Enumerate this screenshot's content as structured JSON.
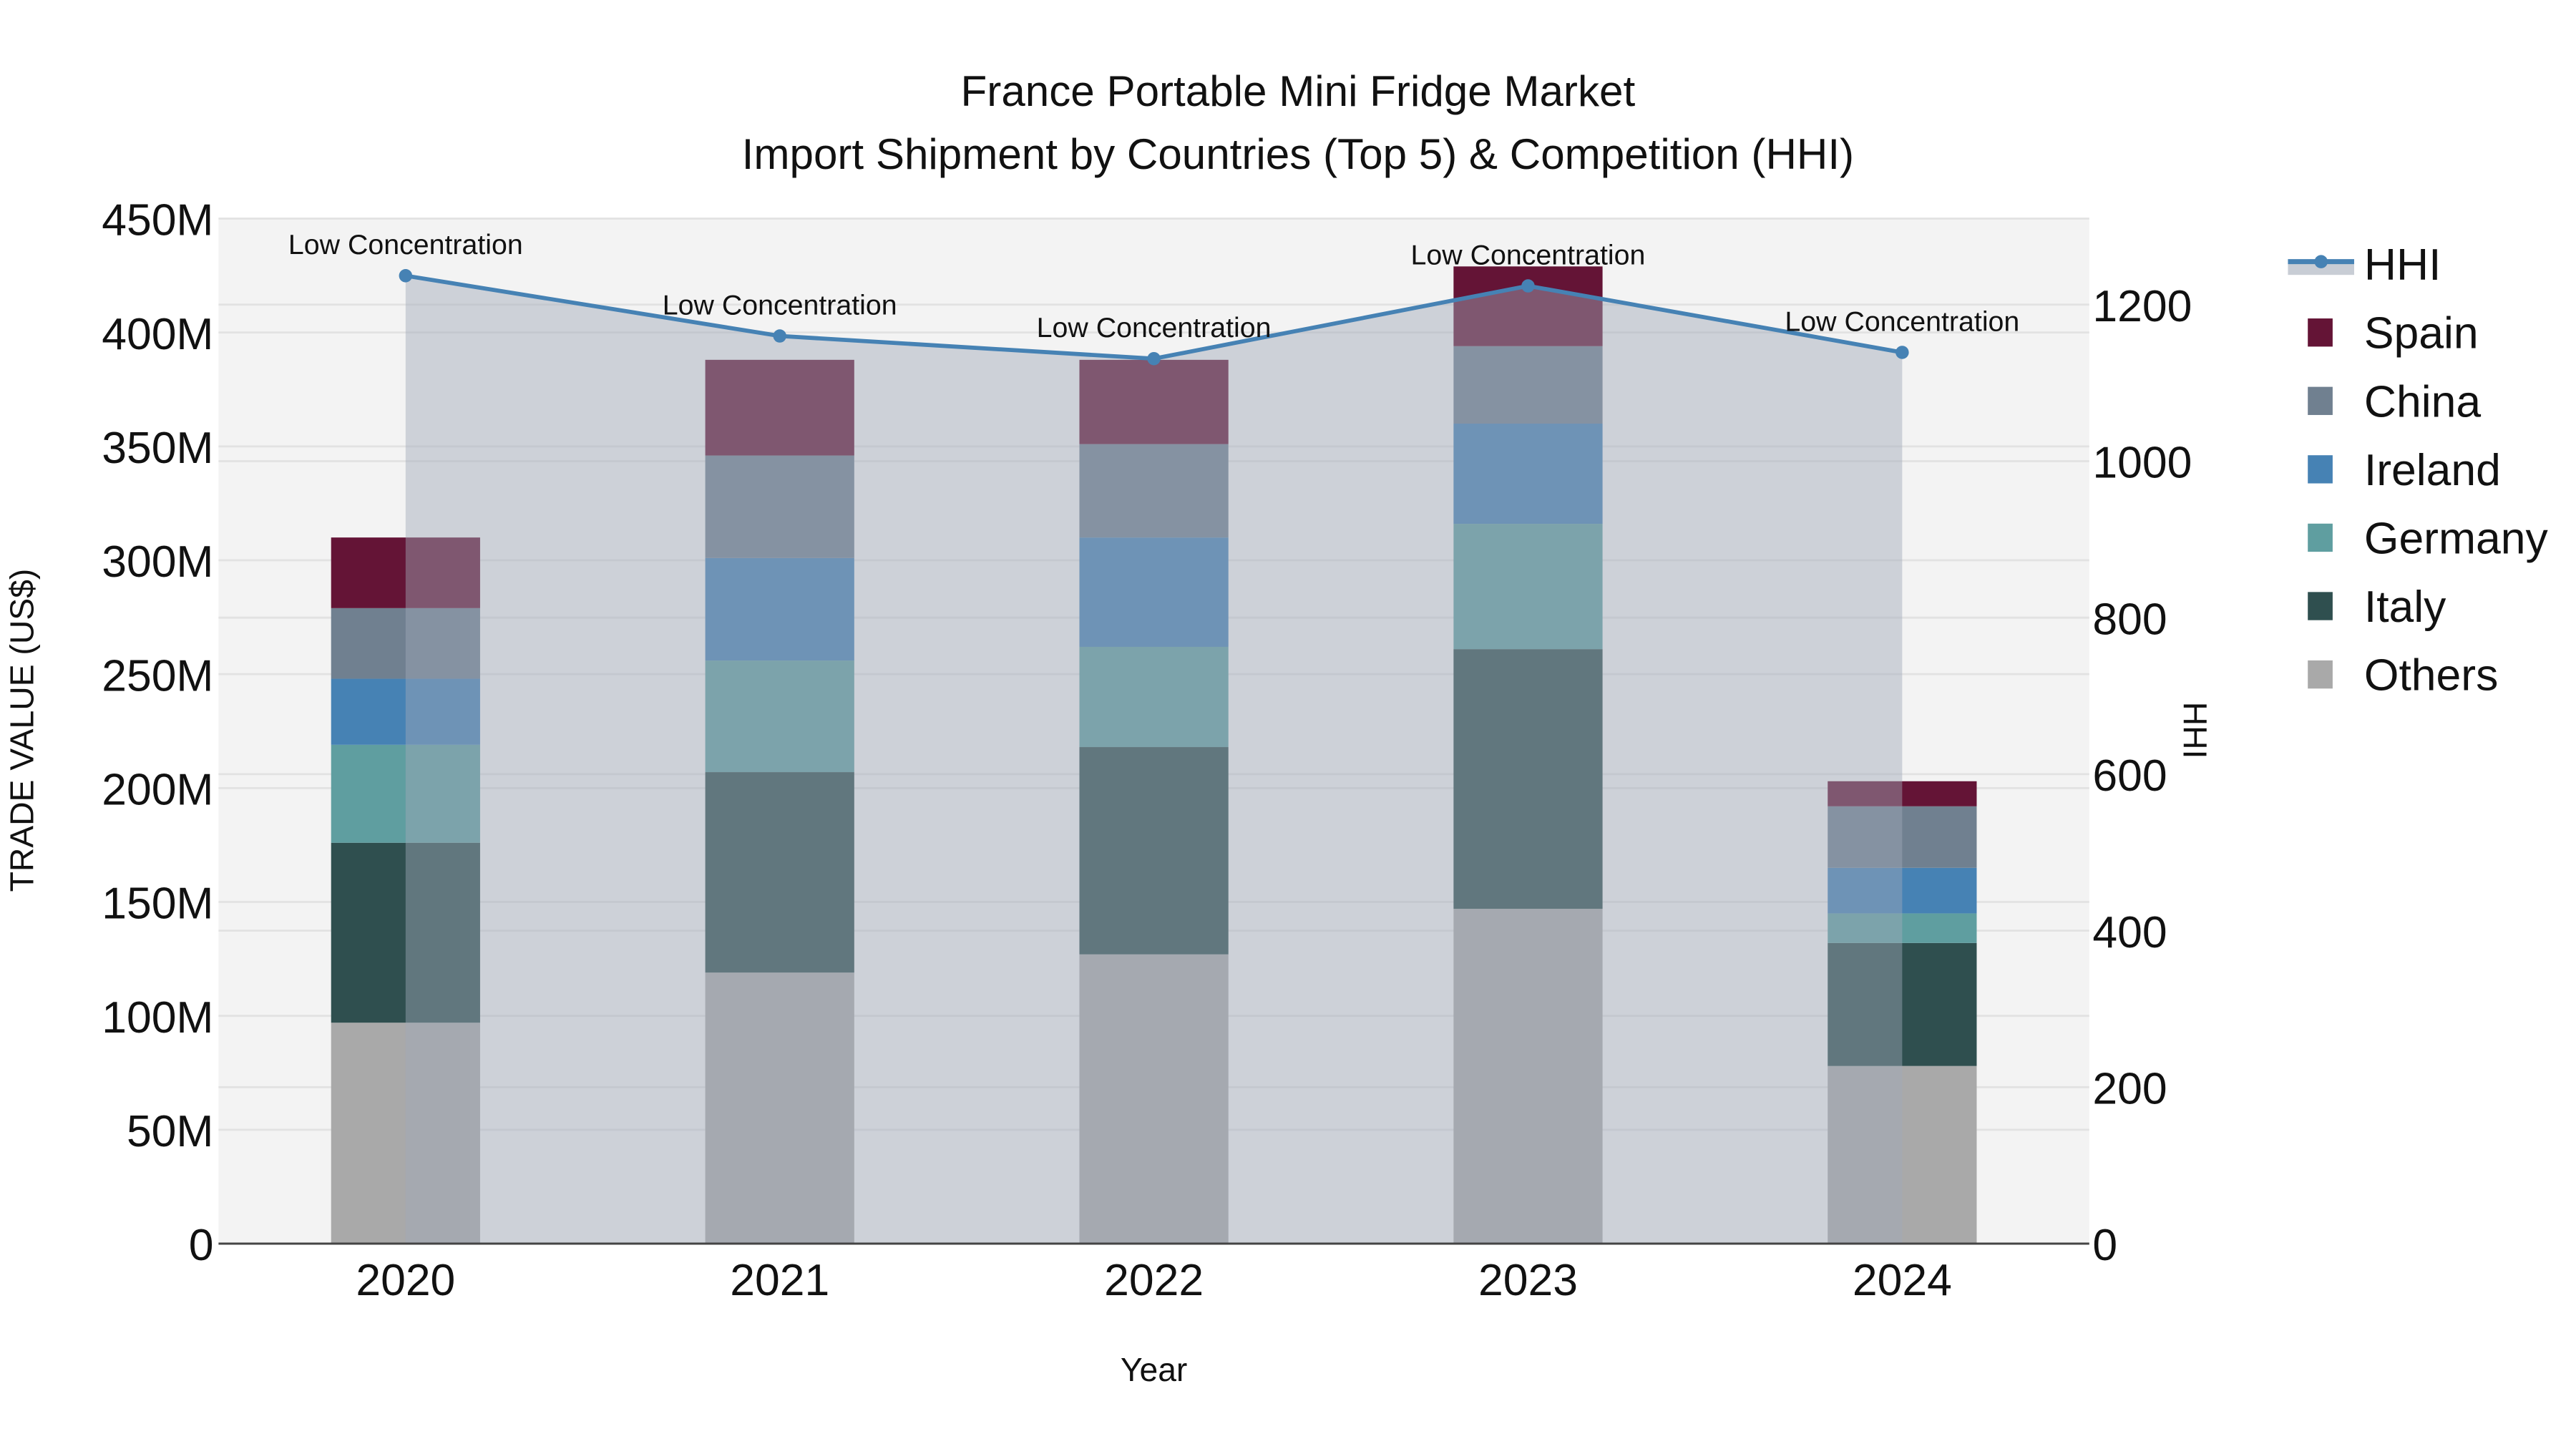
{
  "title": {
    "line1": "France Portable Mini Fridge Market",
    "line2": "Import Shipment by Countries (Top 5) & Competition (HHI)"
  },
  "axes": {
    "x_label": "Year",
    "y_label": "TRADE VALUE (US$)",
    "y2_label": "HHI",
    "y_ticks": [
      "0",
      "50M",
      "100M",
      "150M",
      "200M",
      "250M",
      "300M",
      "350M",
      "400M",
      "450M"
    ],
    "y2_ticks": [
      "0",
      "200",
      "400",
      "600",
      "800",
      "1000",
      "1200"
    ]
  },
  "legend": [
    {
      "name": "HHI",
      "type": "line",
      "color": "#4682B4"
    },
    {
      "name": "Spain",
      "type": "bar",
      "color": "#641436"
    },
    {
      "name": "China",
      "type": "bar",
      "color": "#708090"
    },
    {
      "name": "Ireland",
      "type": "bar",
      "color": "#4682B4"
    },
    {
      "name": "Germany",
      "type": "bar",
      "color": "#5F9EA0"
    },
    {
      "name": "Italy",
      "type": "bar",
      "color": "#2F4F4F"
    },
    {
      "name": "Others",
      "type": "bar",
      "color": "#A9A9A9"
    }
  ],
  "colors": {
    "plot_bg": "#F3F3F3",
    "grid": "#E2E2E2",
    "hhi_line": "#4682B4",
    "hhi_fill": "rgba(160,168,184,0.45)",
    "axis_line": "#444444"
  },
  "chart_data": {
    "type": "bar",
    "stacked": true,
    "title": "France Portable Mini Fridge Market — Import Shipment by Countries (Top 5) & Competition (HHI)",
    "xlabel": "Year",
    "ylabel": "TRADE VALUE (US$)",
    "y2label": "HHI",
    "ylim": [
      0,
      450000000
    ],
    "y2lim": [
      0,
      1310
    ],
    "grid": true,
    "legend_position": "right",
    "categories": [
      "2020",
      "2021",
      "2022",
      "2023",
      "2024"
    ],
    "series": [
      {
        "name": "Others",
        "color": "#A9A9A9",
        "values": [
          97000000,
          119000000,
          127000000,
          147000000,
          78000000
        ]
      },
      {
        "name": "Italy",
        "color": "#2F4F4F",
        "values": [
          79000000,
          88000000,
          91000000,
          114000000,
          54000000
        ]
      },
      {
        "name": "Germany",
        "color": "#5F9EA0",
        "values": [
          43000000,
          49000000,
          44000000,
          55000000,
          13000000
        ]
      },
      {
        "name": "Ireland",
        "color": "#4682B4",
        "values": [
          29000000,
          45000000,
          48000000,
          44000000,
          20000000
        ]
      },
      {
        "name": "China",
        "color": "#708090",
        "values": [
          31000000,
          45000000,
          41000000,
          34000000,
          27000000
        ]
      },
      {
        "name": "Spain",
        "color": "#641436",
        "values": [
          31000000,
          42000000,
          37000000,
          35000000,
          11000000
        ]
      }
    ],
    "line_series": {
      "name": "HHI",
      "axis": "y2",
      "color": "#4682B4",
      "fill": "tozeroy",
      "values": [
        1237,
        1160,
        1131,
        1224,
        1139
      ],
      "annotations": [
        "Low Concentration",
        "Low Concentration",
        "Low Concentration",
        "Low Concentration",
        "Low Concentration"
      ]
    }
  }
}
